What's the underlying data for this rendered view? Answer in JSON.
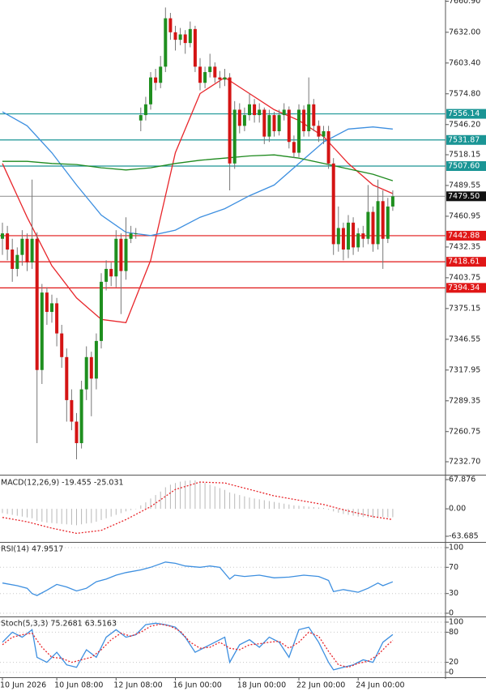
{
  "chart_data": [
    {
      "type": "candlestick",
      "categories": [
        "10 Jun 2026",
        null,
        null,
        null,
        null,
        null,
        null,
        null,
        null,
        null,
        null,
        "10 Jun 08:00",
        null,
        null,
        null,
        null,
        null,
        null,
        null,
        null,
        null,
        null,
        null,
        "12 Jun 08:00",
        null,
        null,
        null,
        null,
        null,
        null,
        null,
        null,
        null,
        null,
        null,
        "16 Jun 00:00",
        null,
        null,
        null,
        null,
        null,
        null,
        null,
        null,
        null,
        null,
        null,
        null,
        "18 Jun 00:00",
        null,
        null,
        null,
        null,
        null,
        null,
        null,
        null,
        null,
        null,
        null,
        "22 Jun 00:00",
        null,
        null,
        null,
        null,
        null,
        null,
        null,
        null,
        null,
        null,
        null,
        "24 Jun 00:00",
        null,
        null,
        null,
        null,
        null,
        null,
        null
      ],
      "open": [
        7440,
        7445,
        7430,
        7412,
        7425,
        7440,
        7418,
        7440,
        7318,
        7390,
        7372,
        7380,
        7352,
        7330,
        7290,
        7270,
        7250,
        7300,
        7330,
        7310,
        7345,
        7400,
        7412,
        7405,
        7440,
        7410,
        7440,
        7445,
        7550,
        7555,
        7565,
        7590,
        7585,
        7600,
        7645,
        7632,
        7625,
        7630,
        7622,
        7635,
        7600,
        7585,
        7595,
        7600,
        7590,
        7588,
        7590,
        7510,
        7560,
        7545,
        7555,
        7565,
        7555,
        7560,
        7535,
        7555,
        7540,
        7555,
        7560,
        7530,
        7520,
        7560,
        7540,
        7565,
        7545,
        7535,
        7540,
        7510,
        7435,
        7450,
        7430,
        7455,
        7432,
        7445,
        7440,
        7465,
        7435,
        7475,
        7440,
        7470
      ],
      "high": [
        7455,
        7452,
        7440,
        7432,
        7448,
        7445,
        7495,
        7446,
        7398,
        7395,
        7388,
        7385,
        7360,
        7338,
        7300,
        7278,
        7308,
        7340,
        7335,
        7352,
        7408,
        7420,
        7418,
        7448,
        7445,
        7460,
        7452,
        7450,
        7562,
        7572,
        7595,
        7598,
        7610,
        7655,
        7650,
        7638,
        7636,
        7634,
        7642,
        7638,
        7608,
        7600,
        7612,
        7604,
        7596,
        7598,
        7594,
        7568,
        7566,
        7562,
        7575,
        7570,
        7566,
        7562,
        7560,
        7558,
        7560,
        7566,
        7563,
        7536,
        7565,
        7564,
        7590,
        7570,
        7550,
        7545,
        7545,
        7515,
        7470,
        7455,
        7462,
        7460,
        7450,
        7452,
        7490,
        7470,
        7495,
        7485,
        7478,
        7485
      ],
      "low": [
        7425,
        7420,
        7400,
        7405,
        7415,
        7410,
        7412,
        7250,
        7305,
        7360,
        7362,
        7340,
        7320,
        7270,
        7262,
        7235,
        7245,
        7290,
        7275,
        7300,
        7338,
        7392,
        7396,
        7395,
        7370,
        7402,
        7436,
        7440,
        7540,
        7550,
        7560,
        7578,
        7580,
        7595,
        7625,
        7615,
        7620,
        7612,
        7618,
        7595,
        7578,
        7580,
        7590,
        7585,
        7580,
        7582,
        7485,
        7505,
        7538,
        7540,
        7550,
        7548,
        7548,
        7528,
        7530,
        7535,
        7536,
        7550,
        7524,
        7515,
        7516,
        7535,
        7535,
        7540,
        7530,
        7528,
        7505,
        7425,
        7428,
        7420,
        7422,
        7425,
        7428,
        7432,
        7435,
        7428,
        7430,
        7412,
        7436,
        7466
      ],
      "close": [
        7445,
        7430,
        7412,
        7425,
        7440,
        7418,
        7440,
        7318,
        7390,
        7372,
        7380,
        7352,
        7330,
        7290,
        7270,
        7250,
        7300,
        7330,
        7310,
        7345,
        7400,
        7412,
        7405,
        7440,
        7410,
        7440,
        7445,
        7445,
        7555,
        7565,
        7590,
        7585,
        7600,
        7645,
        7632,
        7625,
        7630,
        7622,
        7635,
        7600,
        7585,
        7595,
        7600,
        7590,
        7588,
        7590,
        7510,
        7560,
        7545,
        7555,
        7565,
        7555,
        7560,
        7535,
        7555,
        7540,
        7555,
        7560,
        7530,
        7520,
        7560,
        7540,
        7565,
        7545,
        7535,
        7540,
        7510,
        7435,
        7450,
        7430,
        7455,
        7432,
        7445,
        7440,
        7465,
        7435,
        7475,
        7440,
        7470,
        7479.5
      ],
      "up_color": "#1f8f1f",
      "down_color": "#d41414",
      "lines": [
        {
          "color": "#e8262b",
          "x": [
            0,
            5,
            10,
            15,
            20,
            25,
            30,
            35,
            40,
            45,
            50,
            55,
            60,
            65,
            70,
            75,
            79
          ],
          "values": [
            7510,
            7460,
            7415,
            7385,
            7365,
            7362,
            7420,
            7520,
            7575,
            7590,
            7575,
            7560,
            7550,
            7535,
            7510,
            7490,
            7482
          ]
        },
        {
          "color": "#3d8fe0",
          "x": [
            0,
            5,
            10,
            15,
            20,
            25,
            30,
            35,
            40,
            45,
            50,
            55,
            60,
            65,
            70,
            75,
            79
          ],
          "values": [
            7558,
            7545,
            7520,
            7490,
            7462,
            7446,
            7443,
            7448,
            7460,
            7468,
            7480,
            7490,
            7510,
            7530,
            7542,
            7544,
            7542
          ]
        },
        {
          "color": "#1e8a1e",
          "x": [
            0,
            5,
            10,
            15,
            20,
            25,
            30,
            35,
            40,
            45,
            50,
            55,
            60,
            65,
            70,
            75,
            79
          ],
          "values": [
            7512,
            7512,
            7510,
            7509,
            7506,
            7504,
            7506,
            7510,
            7513,
            7515,
            7517,
            7518,
            7515,
            7510,
            7505,
            7500,
            7494
          ]
        }
      ],
      "levels": {
        "values": [
          7556.14,
          7531.87,
          7507.6,
          7479.5,
          7442.88,
          7418.61,
          7394.34
        ],
        "value_labels": [
          "7556.14",
          "7531.87",
          "7507.60",
          "7479.50",
          "7442.88",
          "7418.61",
          "7394.34"
        ],
        "colors": [
          "#1a9595",
          "#1a9595",
          "#1a9595",
          "#9a9a9a",
          "#e01616",
          "#e01616",
          "#e01616"
        ]
      },
      "ylim": [
        7221.4,
        7662
      ],
      "yticks": [
        {
          "value": 7660.9,
          "label": "7660.90"
        },
        {
          "value": 7632,
          "label": "7632.00"
        },
        {
          "value": 7603.4,
          "label": "7603.40"
        },
        {
          "value": 7574.8,
          "label": "7574.80"
        },
        {
          "value": 7546.2,
          "label": "7546.20"
        },
        {
          "value": 7518.15,
          "label": "7518.15"
        },
        {
          "value": 7489.55,
          "label": "7489.55"
        },
        {
          "value": 7460.95,
          "label": "7460.95"
        },
        {
          "value": 7432.35,
          "label": "7432.35"
        },
        {
          "value": 7403.75,
          "label": "7403.75"
        },
        {
          "value": 7375.15,
          "label": "7375.15"
        },
        {
          "value": 7346.55,
          "label": "7346.55"
        },
        {
          "value": 7317.95,
          "label": "7317.95"
        },
        {
          "value": 7289.35,
          "label": "7289.35"
        },
        {
          "value": 7260.75,
          "label": "7260.75"
        },
        {
          "value": 7232.7,
          "label": "7232.70"
        }
      ],
      "grid": false
    },
    {
      "type": "bar",
      "title": "MACD(12,26,9) -19.455 -25.031",
      "color": "#b8b8b8",
      "values": [
        -10,
        -12,
        -14,
        -16,
        -18,
        -20,
        -22,
        -28,
        -30,
        -32,
        -33,
        -34,
        -35,
        -36,
        -37,
        -38,
        -36,
        -34,
        -33,
        -30,
        -26,
        -22,
        -18,
        -14,
        -10,
        -6,
        -3,
        -1,
        8,
        15,
        24,
        32,
        40,
        50,
        56,
        60,
        63,
        65,
        66,
        66,
        64,
        60,
        56,
        52,
        48,
        44,
        38,
        35,
        32,
        29,
        26,
        24,
        22,
        20,
        18,
        16,
        14,
        12,
        10,
        8,
        7,
        6,
        5,
        4,
        3,
        2,
        -2,
        -6,
        -9,
        -12,
        -14,
        -16,
        -18,
        -19,
        -20,
        -21,
        -20,
        -19.5,
        -19.8,
        -19.455
      ],
      "lines": [
        {
          "color": "#e8262b",
          "dash": true,
          "x": [
            0,
            5,
            10,
            15,
            20,
            25,
            30,
            35,
            40,
            45,
            50,
            55,
            60,
            65,
            70,
            75,
            79
          ],
          "values": [
            -20,
            -30,
            -45,
            -57,
            -50,
            -25,
            5,
            45,
            62,
            60,
            45,
            30,
            20,
            10,
            -5,
            -18,
            -25.031
          ]
        }
      ],
      "ylim": [
        -75,
        75.4
      ],
      "yticks": [
        67.876,
        {
          "value": 0,
          "label": "0.00"
        },
        -63.685
      ],
      "grid": false
    },
    {
      "type": "line",
      "title": "RSI(14) 47.9517",
      "lines": [
        {
          "color": "#3d8fe0",
          "x": [
            0,
            3,
            5,
            6,
            7,
            9,
            11,
            13,
            15,
            17,
            19,
            21,
            23,
            25,
            28,
            30,
            33,
            35,
            37,
            40,
            42,
            44,
            46,
            47,
            49,
            52,
            55,
            58,
            61,
            64,
            66,
            67,
            69,
            72,
            74,
            76,
            77,
            79
          ],
          "values": [
            46,
            42,
            38,
            30,
            27,
            35,
            44,
            40,
            34,
            38,
            48,
            52,
            58,
            62,
            66,
            70,
            78,
            76,
            72,
            70,
            72,
            70,
            52,
            58,
            56,
            58,
            54,
            55,
            58,
            56,
            50,
            33,
            36,
            32,
            38,
            46,
            42,
            47.9517
          ]
        }
      ],
      "ylim": [
        -3.7,
        107.4
      ],
      "yticks": [
        100,
        70,
        30,
        0
      ],
      "grid": true
    },
    {
      "type": "line",
      "title": "Stoch(5,3,3) 75.2681 63.5163",
      "lines": [
        {
          "color": "#3d8fe0",
          "x": [
            0,
            2,
            4,
            6,
            7,
            9,
            11,
            13,
            15,
            17,
            19,
            21,
            23,
            25,
            27,
            29,
            31,
            33,
            35,
            37,
            39,
            41,
            43,
            45,
            46,
            48,
            50,
            52,
            54,
            56,
            58,
            60,
            62,
            64,
            66,
            67,
            69,
            71,
            73,
            75,
            77,
            79
          ],
          "values": [
            60,
            80,
            70,
            85,
            30,
            20,
            40,
            15,
            10,
            45,
            30,
            70,
            85,
            70,
            75,
            95,
            98,
            95,
            90,
            70,
            40,
            50,
            60,
            70,
            20,
            55,
            65,
            50,
            70,
            60,
            30,
            85,
            90,
            60,
            20,
            5,
            10,
            15,
            25,
            20,
            60,
            75.2681
          ]
        },
        {
          "color": "#e8262b",
          "dash": true,
          "x": [
            0,
            2,
            4,
            6,
            8,
            10,
            12,
            14,
            16,
            18,
            20,
            22,
            24,
            26,
            28,
            30,
            32,
            34,
            36,
            38,
            40,
            42,
            44,
            46,
            48,
            50,
            52,
            54,
            56,
            58,
            60,
            62,
            64,
            66,
            68,
            70,
            72,
            74,
            76,
            78,
            79
          ],
          "values": [
            55,
            70,
            75,
            78,
            50,
            30,
            28,
            20,
            25,
            30,
            45,
            65,
            78,
            72,
            80,
            92,
            96,
            92,
            82,
            60,
            48,
            50,
            60,
            48,
            45,
            55,
            57,
            60,
            62,
            48,
            60,
            80,
            72,
            42,
            15,
            10,
            18,
            22,
            35,
            55,
            63.5163
          ]
        }
      ],
      "ylim": [
        -8.1,
        109.7
      ],
      "yticks": [
        100,
        80,
        20,
        0
      ],
      "grid": true
    }
  ]
}
